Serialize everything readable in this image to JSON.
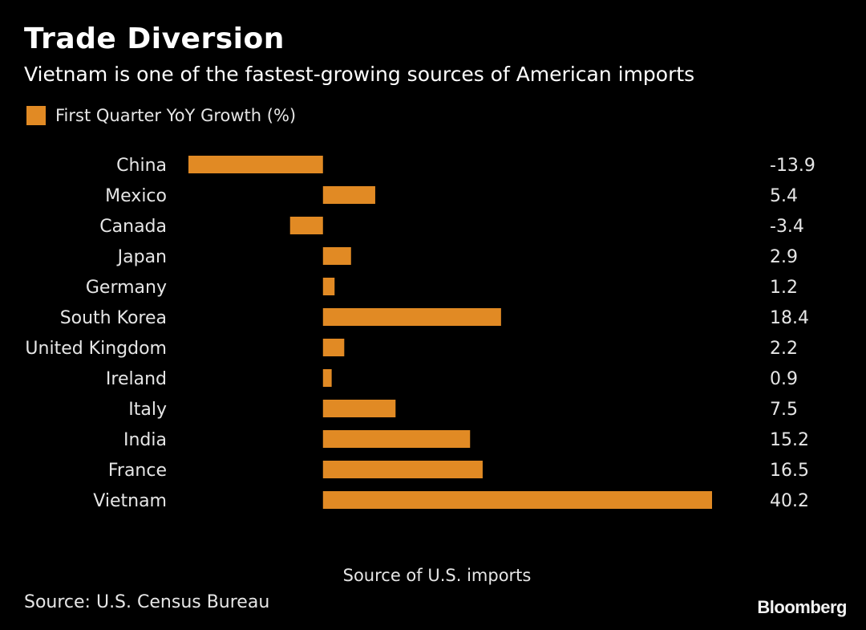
{
  "title": "Trade Diversion",
  "subtitle": "Vietnam is one of the fastest-growing sources of American imports",
  "legend_label": "First Quarter YoY Growth (%)",
  "x_axis_label": "Source of U.S. imports",
  "source_note": "Source: U.S. Census Bureau",
  "brand": "Bloomberg",
  "colors": {
    "background": "#000000",
    "bar": "#E18A24",
    "text": "#FFFFFF"
  },
  "chart_data": {
    "type": "bar",
    "orientation": "horizontal",
    "categories": [
      "China",
      "Mexico",
      "Canada",
      "Japan",
      "Germany",
      "South Korea",
      "United Kingdom",
      "Ireland",
      "Italy",
      "India",
      "France",
      "Vietnam"
    ],
    "series": [
      {
        "name": "First Quarter YoY Growth (%)",
        "values": [
          -13.9,
          5.4,
          -3.4,
          2.9,
          1.2,
          18.4,
          2.2,
          0.9,
          7.5,
          15.2,
          16.5,
          40.2
        ]
      }
    ],
    "value_labels": [
      "-13.9",
      "5.4",
      "-3.4",
      "2.9",
      "1.2",
      "18.4",
      "2.2",
      "0.9",
      "7.5",
      "15.2",
      "16.5",
      "40.2"
    ],
    "xlabel": "Source of U.S. imports",
    "ylabel": "",
    "xlim": [
      -13.9,
      40.2
    ],
    "grid": false,
    "legend_position": "top-left"
  }
}
